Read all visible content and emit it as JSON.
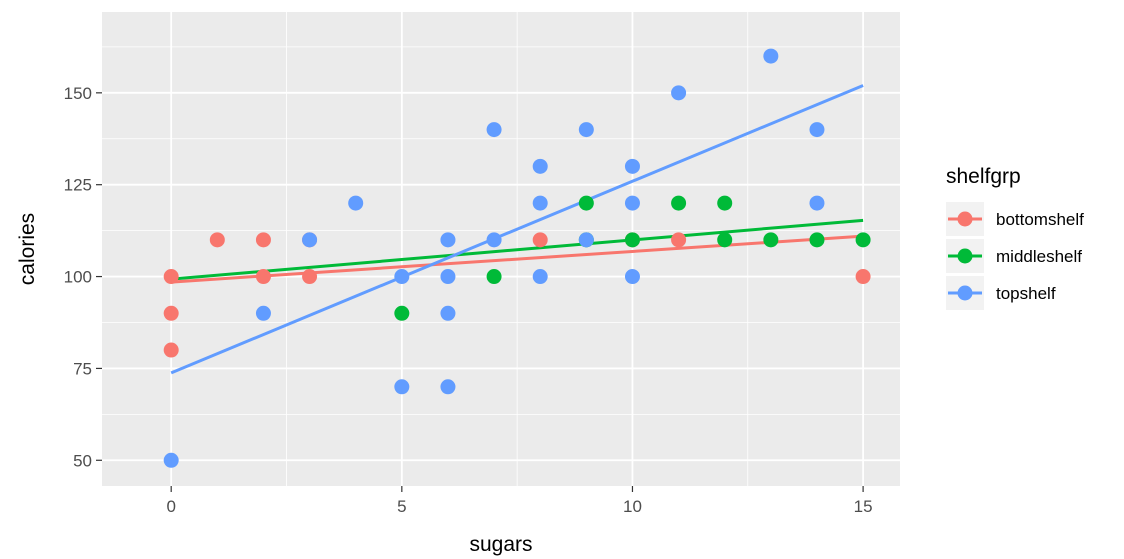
{
  "chart_data": {
    "type": "scatter",
    "xlabel": "sugars",
    "ylabel": "calories",
    "xlim": [
      -1.5,
      15.8
    ],
    "ylim": [
      43,
      172
    ],
    "x_ticks": [
      0,
      5,
      10,
      15
    ],
    "y_ticks": [
      50,
      75,
      100,
      125,
      150
    ],
    "grid": true,
    "legend": {
      "title": "shelfgrp",
      "position": "right"
    },
    "series": [
      {
        "name": "bottomshelf",
        "color": "#F8766D",
        "points": [
          [
            0,
            100
          ],
          [
            0,
            90
          ],
          [
            0,
            80
          ],
          [
            1,
            110
          ],
          [
            2,
            110
          ],
          [
            2,
            100
          ],
          [
            3,
            100
          ],
          [
            3,
            110
          ],
          [
            8,
            110
          ],
          [
            10,
            110
          ],
          [
            11,
            110
          ],
          [
            15,
            100
          ]
        ],
        "fit_line": [
          [
            0,
            98.5
          ],
          [
            15,
            111
          ]
        ]
      },
      {
        "name": "middleshelf",
        "color": "#00BA38",
        "points": [
          [
            5,
            90
          ],
          [
            7,
            100
          ],
          [
            9,
            120
          ],
          [
            9,
            110
          ],
          [
            10,
            110
          ],
          [
            11,
            120
          ],
          [
            12,
            120
          ],
          [
            12,
            110
          ],
          [
            13,
            110
          ],
          [
            14,
            110
          ],
          [
            15,
            110
          ]
        ],
        "fit_line": [
          [
            0,
            99.3
          ],
          [
            15,
            115.3
          ]
        ]
      },
      {
        "name": "topshelf",
        "color": "#619CFF",
        "points": [
          [
            0,
            50
          ],
          [
            2,
            90
          ],
          [
            3,
            110
          ],
          [
            4,
            120
          ],
          [
            5,
            100
          ],
          [
            5,
            70
          ],
          [
            6,
            110
          ],
          [
            6,
            100
          ],
          [
            6,
            90
          ],
          [
            6,
            70
          ],
          [
            7,
            140
          ],
          [
            7,
            110
          ],
          [
            8,
            130
          ],
          [
            8,
            120
          ],
          [
            8,
            100
          ],
          [
            9,
            140
          ],
          [
            9,
            110
          ],
          [
            10,
            130
          ],
          [
            10,
            120
          ],
          [
            10,
            100
          ],
          [
            11,
            150
          ],
          [
            13,
            160
          ],
          [
            14,
            140
          ],
          [
            14,
            120
          ]
        ],
        "fit_line": [
          [
            0,
            73.8
          ],
          [
            15,
            152
          ]
        ]
      }
    ]
  }
}
